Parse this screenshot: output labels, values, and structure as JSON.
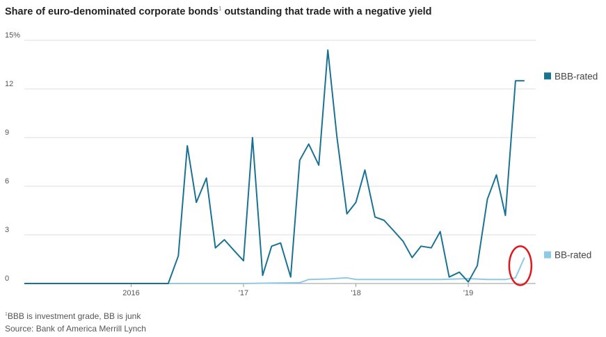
{
  "chart_data": {
    "type": "line",
    "title": "Share of euro-denominated corporate bonds",
    "title_note_marker": "1",
    "title_suffix": "outstanding that trade with a negative yield",
    "y_ticks": [
      "15%",
      "12",
      "9",
      "6",
      "3",
      "0"
    ],
    "y_tick_values": [
      15,
      12,
      9,
      6,
      3,
      0
    ],
    "ylim": [
      0,
      15
    ],
    "x_ticks": [
      "2016",
      "'17",
      "'18",
      "'19"
    ],
    "x_tick_values": [
      2016.0,
      2017.0,
      2018.0,
      2019.0
    ],
    "xlim": [
      2015.05,
      2019.6
    ],
    "grid": "horizontal",
    "legend_placement": "right",
    "series": [
      {
        "name": "BBB-rated",
        "color": "#1a7293",
        "x": [
          2015.05,
          2015.33,
          2015.67,
          2016.0,
          2016.33,
          2016.42,
          2016.5,
          2016.58,
          2016.67,
          2016.75,
          2016.83,
          2016.92,
          2017.0,
          2017.08,
          2017.17,
          2017.25,
          2017.33,
          2017.42,
          2017.5,
          2017.58,
          2017.67,
          2017.75,
          2017.83,
          2017.92,
          2018.0,
          2018.08,
          2018.17,
          2018.25,
          2018.33,
          2018.42,
          2018.5,
          2018.58,
          2018.67,
          2018.75,
          2018.83,
          2018.92,
          2019.0,
          2019.08,
          2019.17,
          2019.25,
          2019.33,
          2019.42,
          2019.5
        ],
        "values": [
          0,
          0,
          0,
          0,
          0,
          1.7,
          8.5,
          5.0,
          6.5,
          2.2,
          2.7,
          2.0,
          1.4,
          9.0,
          0.5,
          2.3,
          2.5,
          0.4,
          7.6,
          8.6,
          7.3,
          14.4,
          9.1,
          4.3,
          5.0,
          7.0,
          4.1,
          3.9,
          3.3,
          2.6,
          1.6,
          2.3,
          2.2,
          3.2,
          0.4,
          0.7,
          0.1,
          1.1,
          5.2,
          6.7,
          4.2,
          12.5,
          12.5
        ]
      },
      {
        "name": "BB-rated",
        "color": "#8ecae6",
        "x": [
          2015.05,
          2016.0,
          2017.0,
          2017.5,
          2017.58,
          2017.75,
          2017.92,
          2018.0,
          2018.5,
          2018.75,
          2019.0,
          2019.17,
          2019.33,
          2019.42,
          2019.5
        ],
        "values": [
          0,
          0,
          0,
          0.05,
          0.25,
          0.28,
          0.35,
          0.25,
          0.25,
          0.25,
          0.3,
          0.25,
          0.25,
          0.35,
          1.6
        ]
      }
    ],
    "footnote": "BBB is investment grade, BB is junk",
    "footnote_marker": "1",
    "source": "Source: Bank of America Merrill Lynch",
    "annotation": "red circle around the latest BB-rated value"
  }
}
